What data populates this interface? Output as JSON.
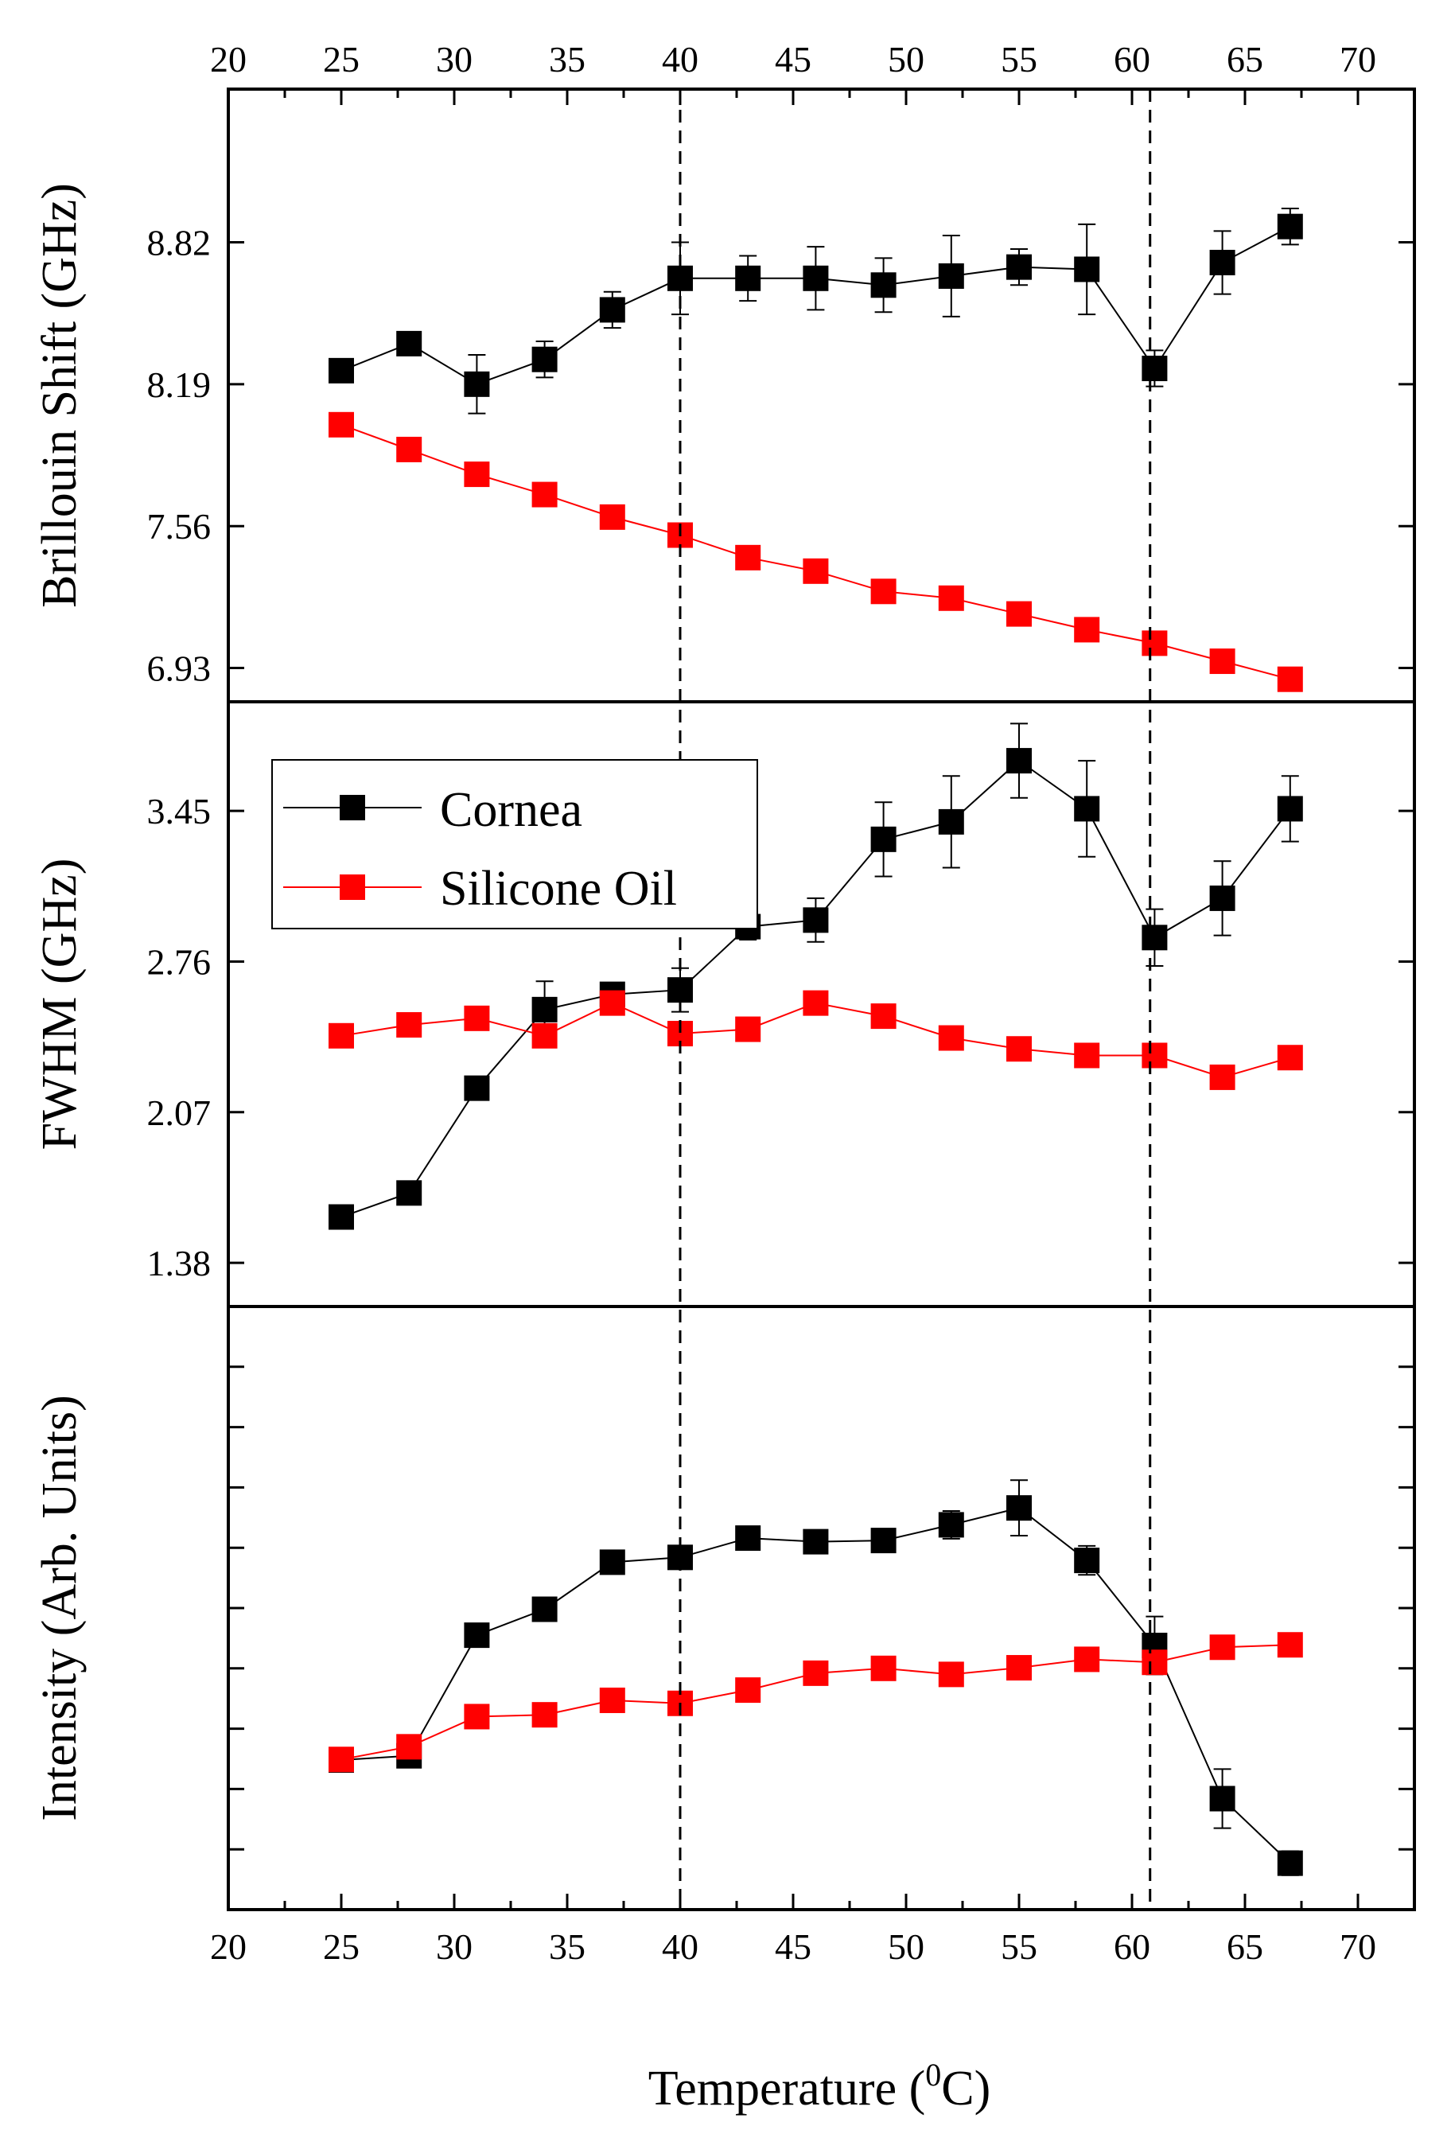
{
  "chart_data": {
    "type": "scatter",
    "x_axis": {
      "label_prefix": "Temperature (",
      "label_superscript": "0",
      "label_suffix": "C)",
      "range": [
        20,
        72.5
      ],
      "ticks": [
        20,
        25,
        30,
        35,
        40,
        45,
        50,
        55,
        60,
        65,
        70
      ],
      "tick_labels": [
        "20",
        "25",
        "30",
        "35",
        "40",
        "45",
        "50",
        "55",
        "60",
        "65",
        "70"
      ]
    },
    "reference_lines": [
      40,
      60.8
    ],
    "legend": {
      "position": "upper-left of middle panel",
      "entries": [
        {
          "label": "Cornea",
          "color": "#000000"
        },
        {
          "label": "Silicone Oil",
          "color": "#ff0000"
        }
      ]
    },
    "x": [
      25,
      28,
      31,
      34,
      37,
      40,
      43,
      46,
      49,
      52,
      55,
      58,
      61,
      64,
      67
    ],
    "panels": [
      {
        "id": "brillouin",
        "ylabel": "Brillouin Shift (GHz)",
        "ylim": [
          6.78,
          9.5
        ],
        "yticks": [
          6.93,
          7.56,
          8.19,
          8.82
        ],
        "ytick_labels": [
          "6.93",
          "7.56",
          "8.19",
          "8.82"
        ],
        "series": [
          {
            "name": "Cornea",
            "color": "#000000",
            "values": [
              8.25,
              8.37,
              8.19,
              8.3,
              8.52,
              8.66,
              8.66,
              8.66,
              8.63,
              8.67,
              8.71,
              8.7,
              8.26,
              8.73,
              8.89
            ],
            "errors": [
              0.05,
              0.05,
              0.13,
              0.08,
              0.08,
              0.16,
              0.1,
              0.14,
              0.12,
              0.18,
              0.08,
              0.2,
              0.08,
              0.14,
              0.08
            ]
          },
          {
            "name": "Silicone Oil",
            "color": "#ff0000",
            "values": [
              8.01,
              7.9,
              7.79,
              7.7,
              7.6,
              7.52,
              7.42,
              7.36,
              7.27,
              7.24,
              7.17,
              7.1,
              7.04,
              6.96,
              6.88
            ],
            "errors": []
          }
        ]
      },
      {
        "id": "fwhm",
        "ylabel": "FWHM (GHz)",
        "ylim": [
          1.18,
          3.95
        ],
        "yticks": [
          1.38,
          2.07,
          2.76,
          3.45
        ],
        "ytick_labels": [
          "1.38",
          "2.07",
          "2.76",
          "3.45"
        ],
        "series": [
          {
            "name": "Cornea",
            "color": "#000000",
            "values": [
              1.59,
              1.7,
              2.18,
              2.54,
              2.61,
              2.63,
              2.92,
              2.95,
              3.32,
              3.4,
              3.68,
              3.46,
              2.87,
              3.05,
              3.46
            ],
            "errors": [
              0.02,
              0.03,
              0.05,
              0.13,
              0.04,
              0.1,
              0.06,
              0.1,
              0.17,
              0.21,
              0.17,
              0.22,
              0.13,
              0.17,
              0.15
            ]
          },
          {
            "name": "Silicone Oil",
            "color": "#ff0000",
            "values": [
              2.42,
              2.47,
              2.5,
              2.42,
              2.57,
              2.43,
              2.45,
              2.57,
              2.51,
              2.41,
              2.36,
              2.33,
              2.33,
              2.23,
              2.32
            ],
            "errors": []
          }
        ]
      },
      {
        "id": "intensity",
        "ylabel": "Intensity (Arb. Units)",
        "ylim": [
          0,
          10
        ],
        "yticks": [
          1,
          2,
          3,
          4,
          5,
          6,
          7,
          8,
          9
        ],
        "ytick_labels": [],
        "series": [
          {
            "name": "Cornea",
            "color": "#000000",
            "values": [
              2.48,
              2.55,
              4.55,
              4.98,
              5.76,
              5.84,
              6.16,
              6.1,
              6.12,
              6.38,
              6.66,
              5.79,
              4.38,
              1.84,
              0.77
            ],
            "errors": [
              0.05,
              0.08,
              0.05,
              0.12,
              0.05,
              0.1,
              0.17,
              0.14,
              0.08,
              0.23,
              0.46,
              0.24,
              0.48,
              0.49,
              0.2
            ]
          },
          {
            "name": "Silicone Oil",
            "color": "#ff0000",
            "values": [
              2.49,
              2.7,
              3.2,
              3.23,
              3.47,
              3.42,
              3.64,
              3.92,
              4.0,
              3.9,
              4.01,
              4.15,
              4.1,
              4.35,
              4.39
            ],
            "errors": []
          }
        ]
      }
    ]
  }
}
